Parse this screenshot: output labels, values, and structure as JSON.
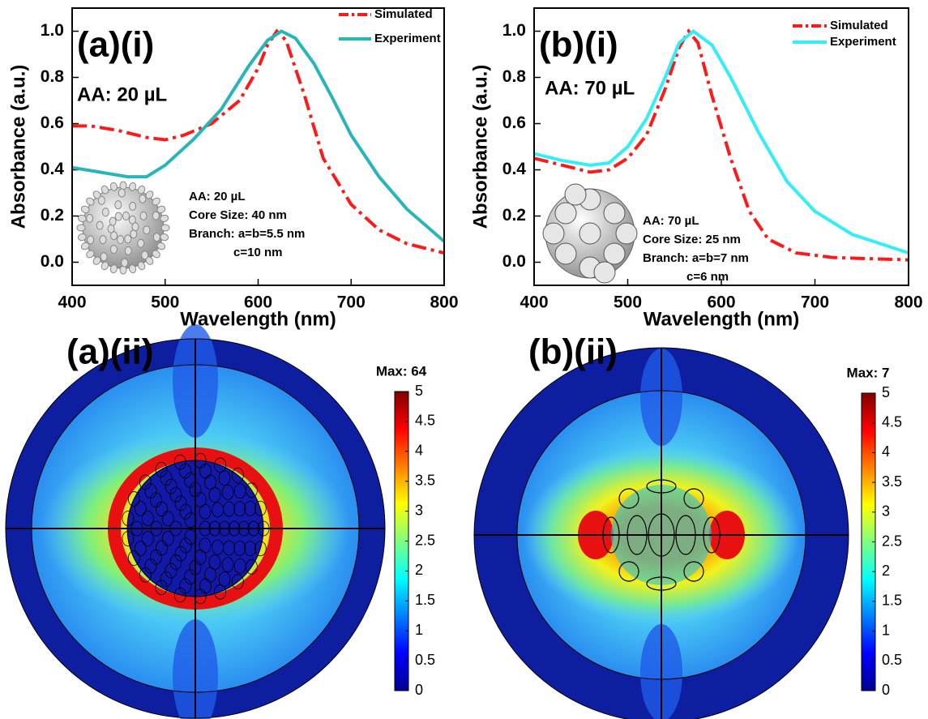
{
  "chart_data": [
    {
      "type": "line",
      "xlabel": "Wavelength (nm)",
      "ylabel": "Absorbance (a.u.)",
      "annotations": [
        "(a)(i)",
        "AA: 20 µL"
      ],
      "inset_text": [
        "AA: 20 µL",
        "Core Size: 40 nm",
        "Branch: a=b=5.5 nm",
        "c=10 nm"
      ],
      "xlim": [
        400,
        800
      ],
      "xticks": [
        400,
        500,
        600,
        700,
        800
      ],
      "ylim": [
        -0.1,
        1.1
      ],
      "yticks": [
        {
          "value": 0,
          "label": "0.0"
        },
        0.2,
        0.4,
        0.6,
        0.8,
        {
          "value": 1,
          "label": "1.0"
        }
      ],
      "legend": "top-right",
      "series": [
        {
          "name": "Simulated",
          "color": "#ff1a1a",
          "line_style": "dash-dot",
          "x": [
            400,
            420,
            450,
            480,
            500,
            520,
            550,
            580,
            600,
            610,
            620,
            630,
            650,
            670,
            700,
            730,
            760,
            800
          ],
          "values": [
            0.59,
            0.59,
            0.57,
            0.54,
            0.53,
            0.55,
            0.6,
            0.7,
            0.84,
            0.94,
            1.0,
            0.96,
            0.72,
            0.45,
            0.25,
            0.14,
            0.08,
            0.04
          ]
        },
        {
          "name": "Experiment",
          "color": "#26b5b8",
          "line_style": "solid",
          "x": [
            400,
            430,
            460,
            480,
            500,
            530,
            560,
            590,
            610,
            625,
            640,
            660,
            680,
            700,
            730,
            760,
            800
          ],
          "values": [
            0.41,
            0.39,
            0.37,
            0.37,
            0.42,
            0.53,
            0.66,
            0.85,
            0.96,
            1.0,
            0.97,
            0.86,
            0.71,
            0.55,
            0.37,
            0.23,
            0.09
          ]
        }
      ]
    },
    {
      "type": "line",
      "xlabel": "Wavelength (nm)",
      "ylabel": "Absorbance (a.u.)",
      "annotations": [
        "(b)(i)",
        "AA: 70 µL"
      ],
      "inset_text": [
        "AA: 70 µL",
        "Core Size: 25 nm",
        "Branch: a=b=7 nm",
        "c=6 nm"
      ],
      "xlim": [
        400,
        800
      ],
      "xticks": [
        400,
        500,
        600,
        700,
        800
      ],
      "ylim": [
        -0.1,
        1.1
      ],
      "yticks": [
        {
          "value": 0,
          "label": "0.0"
        },
        0.2,
        0.4,
        0.6,
        0.8,
        {
          "value": 1,
          "label": "1.0"
        }
      ],
      "legend": "top-right",
      "series": [
        {
          "name": "Simulated",
          "color": "#ff1a1a",
          "line_style": "dash-dot",
          "x": [
            400,
            430,
            460,
            480,
            500,
            520,
            540,
            555,
            565,
            575,
            590,
            610,
            630,
            650,
            680,
            720,
            800
          ],
          "values": [
            0.45,
            0.42,
            0.39,
            0.4,
            0.45,
            0.55,
            0.75,
            0.93,
            1.0,
            0.95,
            0.72,
            0.45,
            0.22,
            0.1,
            0.04,
            0.02,
            0.01
          ]
        },
        {
          "name": "Experiment",
          "color": "#33eef5",
          "line_style": "solid",
          "x": [
            400,
            430,
            460,
            480,
            500,
            520,
            540,
            555,
            570,
            590,
            610,
            640,
            670,
            700,
            740,
            800
          ],
          "values": [
            0.47,
            0.44,
            0.42,
            0.43,
            0.5,
            0.62,
            0.8,
            0.95,
            1.0,
            0.94,
            0.8,
            0.56,
            0.35,
            0.22,
            0.12,
            0.04
          ]
        }
      ]
    },
    {
      "type": "field-map",
      "title": "(a)(ii)",
      "max_label": "Max: 64",
      "clim": [
        0,
        5
      ],
      "cticks": [
        0,
        0.5,
        1,
        1.5,
        2,
        2.5,
        3,
        3.5,
        4,
        4.5,
        5
      ]
    },
    {
      "type": "field-map",
      "title": "(b)(ii)",
      "max_label": "Max: 7",
      "clim": [
        0,
        5
      ],
      "cticks": [
        0,
        0.5,
        1,
        1.5,
        2,
        2.5,
        3,
        3.5,
        4,
        4.5,
        5
      ]
    }
  ]
}
